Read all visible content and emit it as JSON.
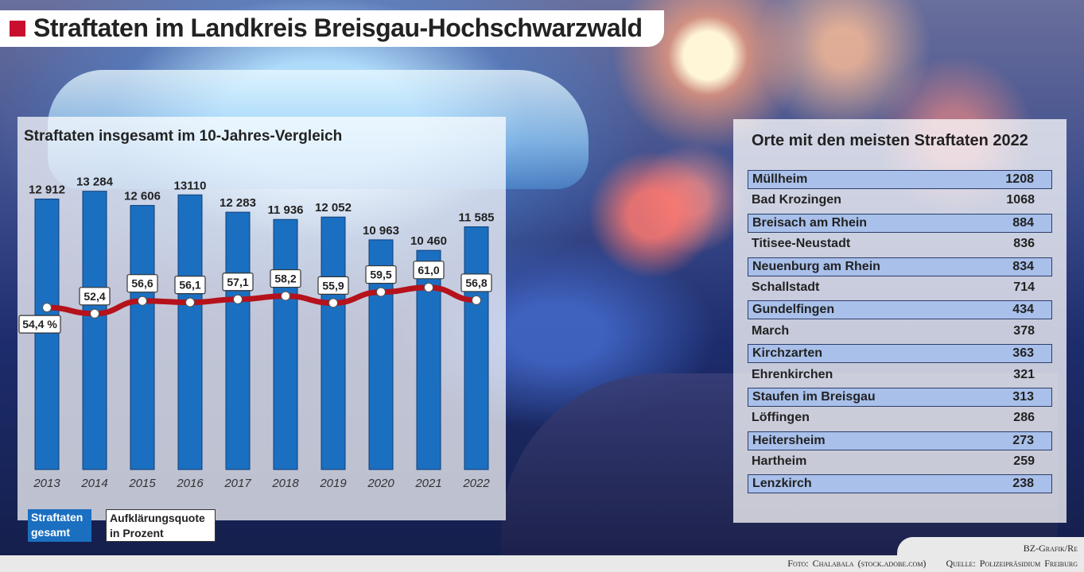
{
  "header": {
    "title": "Straftaten im Landkreis Breisgau-Hochschwarzwald"
  },
  "left_panel": {
    "title": "Straftaten insgesamt im  10-Jahres-Vergleich"
  },
  "legend": {
    "bars_line1": "Straftaten",
    "bars_line2": "gesamt",
    "line_line1": "Aufklärungsquote",
    "line_line2": "in Prozent"
  },
  "colors": {
    "bar": "#1b6fc0",
    "line": "#b5121b",
    "accent": "#c8102e"
  },
  "chart_data": {
    "type": "bar",
    "categories": [
      "2013",
      "2014",
      "2015",
      "2016",
      "2017",
      "2018",
      "2019",
      "2020",
      "2021",
      "2022"
    ],
    "series": [
      {
        "name": "Straftaten gesamt",
        "type": "bar",
        "values": [
          12912,
          13284,
          12606,
          13110,
          12283,
          11936,
          12052,
          10963,
          10460,
          11585
        ],
        "labels": [
          "12 912",
          "13 284",
          "12 606",
          "13110",
          "12 283",
          "11 936",
          "12 052",
          "10 963",
          "10 460",
          "11 585"
        ]
      },
      {
        "name": "Aufklärungsquote in Prozent",
        "type": "line",
        "values": [
          54.4,
          52.4,
          56.6,
          56.1,
          57.1,
          58.2,
          55.9,
          59.5,
          61.0,
          56.8
        ],
        "labels": [
          "54,4 %",
          "52,4",
          "56,6",
          "56,1",
          "57,1",
          "58,2",
          "55,9",
          "59,5",
          "61,0",
          "56,8"
        ]
      }
    ],
    "ylim": [
      0,
      13500
    ],
    "grid": false
  },
  "right_panel": {
    "title": "Orte mit den meisten Straftaten 2022",
    "rows": [
      {
        "name": "Müllheim",
        "value": "1208"
      },
      {
        "name": "Bad Krozingen",
        "value": "1068"
      },
      {
        "name": "Breisach am Rhein",
        "value": "884"
      },
      {
        "name": "Titisee-Neustadt",
        "value": "836"
      },
      {
        "name": "Neuenburg am Rhein",
        "value": "834"
      },
      {
        "name": "Schallstadt",
        "value": "714"
      },
      {
        "name": "Gundelfingen",
        "value": "434"
      },
      {
        "name": "March",
        "value": "378"
      },
      {
        "name": "Kirchzarten",
        "value": "363"
      },
      {
        "name": "Ehrenkirchen",
        "value": "321"
      },
      {
        "name": "Staufen im Breisgau",
        "value": "313"
      },
      {
        "name": "Löffingen",
        "value": "286"
      },
      {
        "name": "Heitersheim",
        "value": "273"
      },
      {
        "name": "Hartheim",
        "value": "259"
      },
      {
        "name": "Lenzkirch",
        "value": "238"
      }
    ]
  },
  "credits": {
    "graphic": "BZ-Grafik/Re",
    "photo": "Foto: Chalabala  (stock.adobe.com)",
    "source": "Quelle: Polizeipräsidium Freiburg"
  }
}
